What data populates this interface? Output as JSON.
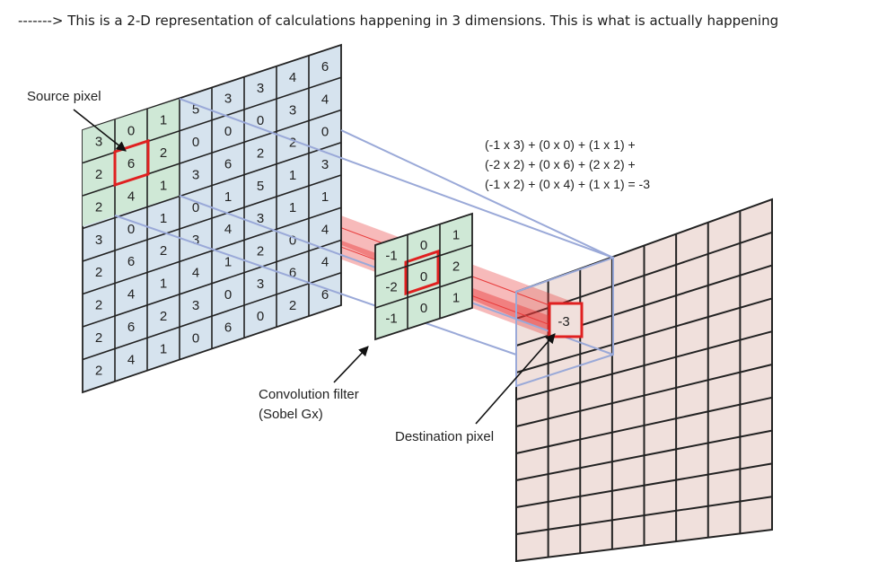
{
  "header": {
    "text": "-------> This is a 2-D representation of calculations happening in 3 dimensions. This is what is actually happening"
  },
  "labels": {
    "source_pixel": "Source pixel",
    "filter_line1": "Convolution filter",
    "filter_line2": "(Sobel Gx)",
    "destination_pixel": "Destination pixel"
  },
  "equation": {
    "line1": "(-1 x 3) + (0 x 0) + (1 x 1) +",
    "line2": "(-2 x 2) + (0 x 6) + (2 x 2) +",
    "line3": "(-1 x 2) + (0 x 4) + (1 x 1)  = -3"
  },
  "source_grid": {
    "front_col0": [
      "3",
      "2",
      "2",
      "3",
      "2",
      "2",
      "2",
      "2"
    ],
    "front_col1": [
      "0",
      "6",
      "4",
      "0",
      "6",
      "4",
      "6",
      "4"
    ],
    "front_col2": [
      "1",
      "2",
      "1",
      "1",
      "2",
      "1",
      "2",
      "1"
    ],
    "back_values": [
      "5",
      "0",
      "3",
      "0",
      "3",
      "4",
      "3",
      "0",
      "3",
      "0",
      "6",
      "1",
      "4",
      "1",
      "0",
      "6",
      "3",
      "0",
      "2",
      "5",
      "3",
      "2",
      "3",
      "0",
      "4",
      "3",
      "2",
      "1",
      "1",
      "0",
      "6",
      "2",
      "6",
      "4",
      "0",
      "3",
      "1",
      "4",
      "4",
      "6",
      "1",
      "6",
      "1"
    ]
  },
  "filter_grid": {
    "values": [
      "-1",
      "0",
      "1",
      "-2",
      "0",
      "2",
      "-1",
      "0",
      "1"
    ]
  },
  "destination": {
    "value": "-3"
  },
  "colors": {
    "green_cell": "#cfe8d6",
    "blue_cell": "#d6e3ee",
    "pink_cell": "#f0e0dc",
    "highlight": "#e02020",
    "beam": "#e83a3a",
    "frame": "#9aa9d8"
  }
}
